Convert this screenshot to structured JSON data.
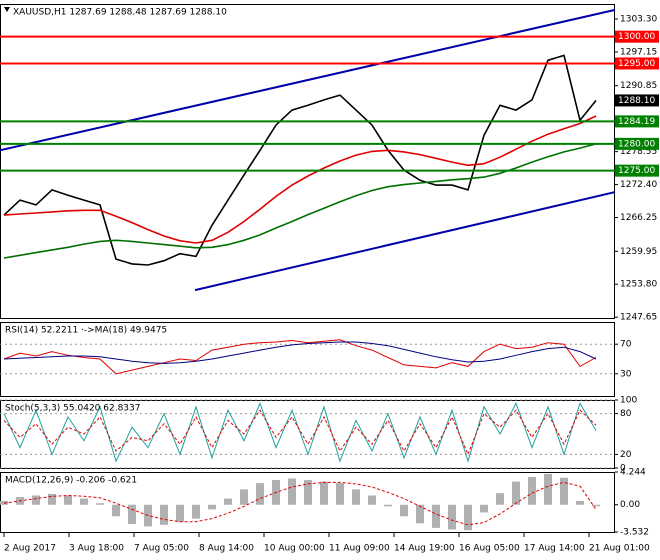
{
  "chart_data": [
    {
      "type": "line",
      "title": "XAUUSD,H1  1287.69 1288.48 1287.69 1288.10",
      "x": [
        0,
        8,
        16,
        24,
        32,
        40,
        48,
        56,
        64,
        72,
        80,
        88,
        96,
        104,
        112,
        120,
        128,
        136,
        144,
        152,
        160,
        168,
        176,
        184,
        192,
        200,
        208,
        216,
        224,
        232,
        240,
        248,
        256,
        264,
        272,
        280,
        288,
        296
      ],
      "xlim": [
        -2,
        305.5
      ],
      "xticks": [
        {
          "value": 0,
          "label": "2 Aug 2017"
        },
        {
          "value": 32.5,
          "label": "3 Aug 18:00"
        },
        {
          "value": 65,
          "label": "7 Aug 05:00"
        },
        {
          "value": 97.5,
          "label": "8 Aug 14:00"
        },
        {
          "value": 130,
          "label": "10 Aug 00:00"
        },
        {
          "value": 162.5,
          "label": "11 Aug 09:00"
        },
        {
          "value": 195,
          "label": "14 Aug 19:00"
        },
        {
          "value": 227.5,
          "label": "16 Aug 05:00"
        },
        {
          "value": 260,
          "label": "17 Aug 14:00"
        },
        {
          "value": 292.5,
          "label": "21 Aug 01:00"
        }
      ],
      "ylim": [
        1247.5,
        1306.1
      ],
      "yticks": [
        {
          "value": 1303.3,
          "label": "1303.30"
        },
        1297.15,
        1290.85,
        1278.55,
        {
          "value": 1272.4,
          "label": "1272.40"
        },
        1266.25,
        1259.95,
        {
          "value": 1253.8,
          "label": "1253.80"
        },
        1247.65
      ],
      "series": [
        {
          "color": "#000000",
          "values": [
            1266.7,
            1269.5,
            1268.6,
            1271.4,
            1270.4,
            1269.5,
            1268.6,
            1258.5,
            1257.6,
            1257.4,
            1258.2,
            1259.5,
            1259.0,
            1264.8,
            1269.5,
            1274.2,
            1278.8,
            1283.5,
            1286.3,
            1287.2,
            1288.2,
            1289.1,
            1286.3,
            1283.5,
            1278.8,
            1275.1,
            1273.2,
            1272.3,
            1272.3,
            1271.4,
            1281.6,
            1287.2,
            1286.3,
            1288.2,
            1295.6,
            1296.5,
            1284.4,
            1288.1
          ]
        },
        {
          "color": "#e00000",
          "values": [
            1266.7,
            1266.9,
            1267.1,
            1267.3,
            1267.5,
            1267.6,
            1267.6,
            1266.5,
            1265.3,
            1264.0,
            1262.8,
            1261.9,
            1261.5,
            1262.0,
            1263.5,
            1265.5,
            1267.8,
            1270.2,
            1272.3,
            1274.0,
            1275.5,
            1276.8,
            1277.9,
            1278.6,
            1278.8,
            1278.5,
            1278.0,
            1277.3,
            1276.6,
            1276.0,
            1276.3,
            1277.5,
            1279.0,
            1280.5,
            1281.8,
            1282.8,
            1283.8,
            1285.2
          ]
        },
        {
          "color": "#007000",
          "values": [
            1258.7,
            1259.2,
            1259.7,
            1260.2,
            1260.7,
            1261.3,
            1261.8,
            1262.0,
            1261.8,
            1261.5,
            1261.2,
            1260.9,
            1260.6,
            1260.7,
            1261.2,
            1262.0,
            1263.0,
            1264.3,
            1265.5,
            1266.8,
            1268.0,
            1269.2,
            1270.3,
            1271.3,
            1272.0,
            1272.4,
            1272.7,
            1273.0,
            1273.3,
            1273.5,
            1273.8,
            1274.5,
            1275.5,
            1276.6,
            1277.6,
            1278.5,
            1279.2,
            1280.0
          ]
        }
      ],
      "channels": [
        {
          "color": "#0000aa",
          "x": [
            -2,
            305.5
          ],
          "values": [
            1278.8,
            1305.0
          ]
        },
        {
          "color": "#0000aa",
          "x": [
            95.5,
            305.5
          ],
          "values": [
            1252.7,
            1271.0
          ]
        }
      ],
      "levels": [
        {
          "value": 1300,
          "label": "1300.00",
          "color": "#ff0000"
        },
        {
          "value": 1295,
          "label": "1295.00",
          "color": "#ff0000"
        },
        {
          "value": 1284.19,
          "label": "1284.19",
          "color": "#008000"
        },
        {
          "value": 1280,
          "label": "1280.00",
          "color": "#008000"
        },
        {
          "value": 1275,
          "label": "1275.00",
          "color": "#008000"
        }
      ],
      "last": {
        "value": 1288.1,
        "label": "1288.10",
        "color": "#000000"
      }
    },
    {
      "type": "line",
      "title": "RSI(14) 52.2211  ·->MA(18) 49.9475",
      "ylim": [
        0,
        100
      ],
      "yticks": [
        70,
        30
      ],
      "grid": true,
      "series": [
        {
          "color": "#e00000",
          "values": [
            50,
            58,
            54,
            60,
            55,
            52,
            50,
            30,
            35,
            40,
            45,
            50,
            48,
            62,
            66,
            70,
            72,
            73,
            75,
            72,
            74,
            76,
            68,
            62,
            52,
            42,
            40,
            38,
            45,
            40,
            60,
            70,
            64,
            66,
            72,
            70,
            40,
            52
          ]
        },
        {
          "color": "#000080",
          "values": [
            50,
            51,
            52,
            53,
            54,
            54,
            53,
            50,
            47,
            45,
            44,
            45,
            47,
            50,
            54,
            58,
            62,
            66,
            69,
            71,
            72,
            73,
            73,
            71,
            68,
            63,
            58,
            53,
            49,
            46,
            47,
            50,
            55,
            60,
            64,
            66,
            60,
            50
          ]
        }
      ]
    },
    {
      "type": "line",
      "title": "Stoch(5,3,3) 55.0420 62.8337",
      "ylim": [
        0,
        100
      ],
      "yticks": [
        100,
        80,
        20,
        0
      ],
      "grid": true,
      "series": [
        {
          "color": "#20a0a0",
          "values": [
            80,
            30,
            85,
            20,
            75,
            40,
            90,
            10,
            60,
            30,
            80,
            20,
            90,
            15,
            85,
            40,
            95,
            30,
            85,
            20,
            90,
            10,
            70,
            25,
            80,
            15,
            75,
            20,
            85,
            10,
            90,
            50,
            95,
            30,
            90,
            20,
            95,
            55
          ]
        },
        {
          "color": "#e00000",
          "dashed": true,
          "values": [
            70,
            45,
            65,
            35,
            60,
            50,
            75,
            25,
            45,
            40,
            65,
            35,
            75,
            30,
            70,
            50,
            85,
            45,
            75,
            35,
            75,
            25,
            60,
            35,
            70,
            25,
            65,
            30,
            75,
            20,
            80,
            60,
            85,
            45,
            80,
            35,
            85,
            63
          ]
        }
      ]
    },
    {
      "type": "bar",
      "title": "MACD(12,26,9) -0.206 -0.621",
      "ylim": [
        -3.532,
        4.244
      ],
      "yticks": [
        4.244,
        {
          "value": 0,
          "label": "0.00"
        },
        -3.532
      ],
      "series": [
        {
          "color": "#b0b0b0",
          "kind": "bar",
          "values": [
            0.5,
            1.0,
            1.2,
            1.4,
            1.2,
            0.8,
            0.2,
            -1.5,
            -2.5,
            -2.8,
            -2.6,
            -2.2,
            -1.8,
            -0.6,
            0.8,
            2.0,
            2.8,
            3.2,
            3.4,
            3.2,
            3.0,
            2.8,
            2.0,
            1.2,
            -0.2,
            -1.5,
            -2.4,
            -3.0,
            -3.2,
            -3.3,
            -1.0,
            1.5,
            3.0,
            3.6,
            4.0,
            3.5,
            0.5,
            -0.2
          ]
        },
        {
          "color": "#e00000",
          "kind": "line",
          "dashed": true,
          "values": [
            0.2,
            0.5,
            0.8,
            1.1,
            1.2,
            1.1,
            0.9,
            0.2,
            -0.6,
            -1.4,
            -1.9,
            -2.2,
            -2.2,
            -1.8,
            -1.1,
            -0.2,
            0.8,
            1.6,
            2.3,
            2.7,
            2.9,
            2.9,
            2.7,
            2.3,
            1.6,
            0.8,
            -0.2,
            -1.2,
            -2.0,
            -2.6,
            -2.3,
            -1.2,
            0.2,
            1.5,
            2.4,
            2.9,
            2.4,
            -0.6
          ]
        }
      ]
    }
  ]
}
